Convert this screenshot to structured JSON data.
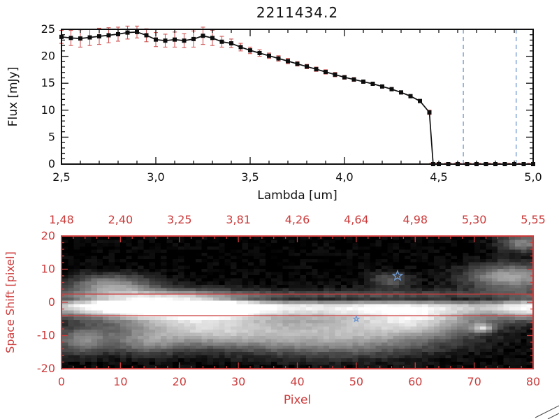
{
  "colors": {
    "background": "#ffffff",
    "axis_black": "#111111",
    "axis_red": "#cc3b3b",
    "error_red": "#d05555",
    "dashed_blue": "#6f97cf",
    "marker_black": "#0c0c0c"
  },
  "chart_data": [
    {
      "type": "line",
      "title": "2211434.2",
      "xlabel": "Lambda [um]",
      "ylabel": "Flux [mJy]",
      "xlim": [
        2.5,
        5.0
      ],
      "ylim": [
        0,
        25
      ],
      "grid": false,
      "legend": "none",
      "x_ticks": [
        {
          "v": 2.5,
          "label": "2,5"
        },
        {
          "v": 3.0,
          "label": "3,0"
        },
        {
          "v": 3.5,
          "label": "3,5"
        },
        {
          "v": 4.0,
          "label": "4,0"
        },
        {
          "v": 4.5,
          "label": "4,5"
        },
        {
          "v": 5.0,
          "label": "5,0"
        }
      ],
      "y_ticks": [
        {
          "v": 0,
          "label": "0"
        },
        {
          "v": 5,
          "label": "5"
        },
        {
          "v": 10,
          "label": "10"
        },
        {
          "v": 15,
          "label": "15"
        },
        {
          "v": 20,
          "label": "20"
        },
        {
          "v": 25,
          "label": "25"
        }
      ],
      "x": [
        2.5,
        2.55,
        2.6,
        2.65,
        2.7,
        2.75,
        2.8,
        2.85,
        2.9,
        2.95,
        3.0,
        3.05,
        3.1,
        3.15,
        3.2,
        3.25,
        3.3,
        3.35,
        3.4,
        3.45,
        3.5,
        3.55,
        3.6,
        3.65,
        3.7,
        3.75,
        3.8,
        3.85,
        3.9,
        3.95,
        4.0,
        4.05,
        4.1,
        4.15,
        4.2,
        4.25,
        4.3,
        4.35,
        4.4,
        4.45,
        4.47,
        4.5,
        4.55,
        4.6,
        4.65,
        4.7,
        4.75,
        4.8,
        4.85,
        4.9,
        4.95,
        5.0
      ],
      "y": [
        23.6,
        23.4,
        23.3,
        23.5,
        23.7,
        23.9,
        24.1,
        24.4,
        24.5,
        23.9,
        23.1,
        22.9,
        23.1,
        22.9,
        23.2,
        23.8,
        23.4,
        22.7,
        22.4,
        21.7,
        21.1,
        20.6,
        20.1,
        19.6,
        19.1,
        18.6,
        18.1,
        17.6,
        17.1,
        16.6,
        16.1,
        15.7,
        15.3,
        14.9,
        14.4,
        13.9,
        13.3,
        12.6,
        11.7,
        9.6,
        0,
        0,
        0,
        0,
        0,
        0,
        0,
        0,
        0,
        0,
        0,
        0
      ],
      "yerr": [
        1.2,
        1.4,
        1.6,
        1.5,
        1.5,
        1.4,
        1.3,
        1.2,
        1.1,
        1.2,
        1.3,
        1.2,
        1.4,
        1.3,
        1.5,
        1.6,
        1.4,
        1.0,
        0.8,
        0.7,
        0.6,
        0.6,
        0.5,
        0.5,
        0.5,
        0.4,
        0.4,
        0.4,
        0.4,
        0.4,
        0.35,
        0.35,
        0.3,
        0.3,
        0.3,
        0.3,
        0.3,
        0.3,
        0.3,
        0.4,
        0,
        0.25,
        0.25,
        0.25,
        0.25,
        0.25,
        0.25,
        0.25,
        0.25,
        0.25,
        0.25,
        0.25
      ],
      "marker": "square",
      "vlines": [
        {
          "x": 4.63,
          "style": "dashed",
          "color": "#6f97cf"
        },
        {
          "x": 4.91,
          "style": "dashed",
          "color": "#6f97cf"
        }
      ],
      "zero_line": {
        "y": 0,
        "x_from": 4.45,
        "x_to": 5.0,
        "style": "dashed",
        "color": "#cc3b3b"
      }
    },
    {
      "type": "heatmap",
      "xlabel": "Pixel",
      "ylabel": "Space Shift [pixel]",
      "xlim": [
        0,
        80
      ],
      "ylim": [
        -20,
        20
      ],
      "axis_color": "#cc3b3b",
      "x_ticks": [
        {
          "v": 0,
          "label": "0"
        },
        {
          "v": 10,
          "label": "10"
        },
        {
          "v": 20,
          "label": "20"
        },
        {
          "v": 30,
          "label": "30"
        },
        {
          "v": 40,
          "label": "40"
        },
        {
          "v": 50,
          "label": "50"
        },
        {
          "v": 60,
          "label": "60"
        },
        {
          "v": 70,
          "label": "70"
        },
        {
          "v": 80,
          "label": "80"
        }
      ],
      "y_ticks": [
        {
          "v": -20,
          "label": "-20"
        },
        {
          "v": -10,
          "label": "-10"
        },
        {
          "v": 0,
          "label": "0"
        },
        {
          "v": 10,
          "label": "10"
        },
        {
          "v": 20,
          "label": "20"
        }
      ],
      "top_ticks": [
        {
          "v": 0,
          "label": "1,48"
        },
        {
          "v": 10,
          "label": "2,40"
        },
        {
          "v": 20,
          "label": "3,25"
        },
        {
          "v": 30,
          "label": "3,81"
        },
        {
          "v": 40,
          "label": "4,26"
        },
        {
          "v": 50,
          "label": "4,64"
        },
        {
          "v": 60,
          "label": "4,98"
        },
        {
          "v": 70,
          "label": "5,30"
        },
        {
          "v": 80,
          "label": "5,55"
        }
      ],
      "aperture_lines_y": [
        2.5,
        -4
      ],
      "markers": [
        {
          "shape": "star",
          "x": 57,
          "y": 8,
          "size": 7,
          "color": "#6f97cf"
        },
        {
          "shape": "star",
          "x": 50,
          "y": -5,
          "size": 4,
          "color": "#6f97cf"
        }
      ],
      "blobs": [
        {
          "x": 40,
          "y": -1,
          "sx": 45,
          "sy": 2.4,
          "a": 0.78
        },
        {
          "x": 14,
          "y": -0.5,
          "sx": 9,
          "sy": 2.6,
          "a": 0.95
        },
        {
          "x": 25,
          "y": -1.5,
          "sx": 6,
          "sy": 2.2,
          "a": 0.45
        },
        {
          "x": 8,
          "y": 5.5,
          "sx": 5,
          "sy": 2.3,
          "a": 0.5
        },
        {
          "x": 3,
          "y": -12,
          "sx": 3.5,
          "sy": 3,
          "a": 0.45
        },
        {
          "x": 14,
          "y": -13,
          "sx": 4,
          "sy": 2.5,
          "a": 0.3
        },
        {
          "x": 21,
          "y": -7.5,
          "sx": 9,
          "sy": 4,
          "a": 0.6
        },
        {
          "x": 33,
          "y": -9,
          "sx": 10,
          "sy": 3.5,
          "a": 0.3
        },
        {
          "x": 52,
          "y": -8,
          "sx": 12,
          "sy": 4.5,
          "a": 0.5
        },
        {
          "x": 61,
          "y": -5.5,
          "sx": 7,
          "sy": 3,
          "a": 0.45
        },
        {
          "x": 45,
          "y": -13,
          "sx": 12,
          "sy": 3.5,
          "a": 0.22
        },
        {
          "x": 77,
          "y": 8,
          "sx": 5.5,
          "sy": 2.8,
          "a": 0.6
        },
        {
          "x": 80,
          "y": -2,
          "sx": 4,
          "sy": 2.5,
          "a": 0.5
        },
        {
          "x": 56,
          "y": 7,
          "sx": 2.5,
          "sy": 1.8,
          "a": 0.28
        },
        {
          "x": 79,
          "y": 18.5,
          "sx": 3,
          "sy": 1.8,
          "a": 0.45
        },
        {
          "x": 72,
          "y": -8,
          "sx": 1.3,
          "sy": 1,
          "a": 0.6
        },
        {
          "x": 40,
          "y": 0.8,
          "sx": 45,
          "sy": 0.8,
          "a": -0.5
        }
      ]
    }
  ]
}
